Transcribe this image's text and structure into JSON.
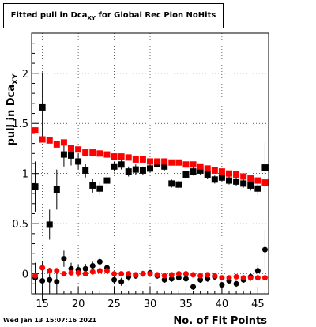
{
  "chart_data": {
    "type": "scatter",
    "title": "Fitted pull in Dca_XY for Global Rec Pion NoHits",
    "title_main": "Fitted pull in Dca",
    "title_sub": "XY",
    "title_rest": " for Global Rec Pion NoHits",
    "xlabel": "No. of Fit Points",
    "ylabel_main": "pull in Dca",
    "ylabel_sub": "XY",
    "xlim": [
      13.5,
      46.5
    ],
    "ylim": [
      -0.2,
      2.4
    ],
    "x_ticks": [
      15,
      20,
      25,
      30,
      35,
      40,
      45
    ],
    "y_ticks": [
      0,
      0.5,
      1,
      1.5,
      2
    ],
    "y_tick_labels": [
      "0",
      "0.5",
      "1",
      "1.5",
      "2"
    ],
    "x_tick_labels": [
      "15",
      "20",
      "25",
      "30",
      "35",
      "40",
      "45"
    ],
    "series": [
      {
        "marker": "square",
        "color": "#000000",
        "x": [
          14,
          15,
          16,
          17,
          18,
          19,
          20,
          21,
          22,
          23,
          24,
          25,
          26,
          27,
          28,
          29,
          30,
          31,
          32,
          33,
          34,
          35,
          36,
          37,
          38,
          39,
          40,
          41,
          42,
          43,
          44,
          45,
          46
        ],
        "y": [
          0.87,
          1.66,
          0.49,
          0.84,
          1.19,
          1.18,
          1.12,
          1.03,
          0.88,
          0.85,
          0.93,
          1.07,
          1.09,
          1.02,
          1.04,
          1.03,
          1.05,
          1.1,
          1.07,
          0.9,
          0.89,
          0.99,
          1.02,
          1.03,
          0.99,
          0.94,
          0.96,
          0.93,
          0.92,
          0.9,
          0.88,
          0.85,
          1.06
        ],
        "err": [
          0.25,
          0.35,
          0.15,
          0.2,
          0.12,
          0.1,
          0.08,
          0.07,
          0.07,
          0.06,
          0.07,
          0.05,
          0.05,
          0.05,
          0.05,
          0.04,
          0.04,
          0.04,
          0.04,
          0.04,
          0.04,
          0.04,
          0.04,
          0.04,
          0.04,
          0.04,
          0.04,
          0.04,
          0.04,
          0.04,
          0.05,
          0.06,
          0.25
        ]
      },
      {
        "marker": "square",
        "color": "#ff0000",
        "x": [
          14,
          15,
          16,
          17,
          18,
          19,
          20,
          21,
          22,
          23,
          24,
          25,
          26,
          27,
          28,
          29,
          30,
          31,
          32,
          33,
          34,
          35,
          36,
          37,
          38,
          39,
          40,
          41,
          42,
          43,
          44,
          45,
          46
        ],
        "y": [
          1.43,
          1.34,
          1.33,
          1.29,
          1.31,
          1.25,
          1.24,
          1.21,
          1.21,
          1.2,
          1.19,
          1.17,
          1.17,
          1.16,
          1.14,
          1.14,
          1.12,
          1.12,
          1.12,
          1.11,
          1.11,
          1.09,
          1.09,
          1.07,
          1.05,
          1.03,
          1.02,
          1.0,
          0.99,
          0.97,
          0.95,
          0.93,
          0.91
        ],
        "err": [
          0.03,
          0.02,
          0.02,
          0.02,
          0.02,
          0.02,
          0.02,
          0.02,
          0.01,
          0.01,
          0.01,
          0.01,
          0.01,
          0.01,
          0.01,
          0.01,
          0.01,
          0.01,
          0.01,
          0.01,
          0.01,
          0.01,
          0.01,
          0.01,
          0.01,
          0.01,
          0.01,
          0.01,
          0.01,
          0.01,
          0.01,
          0.02,
          0.02
        ]
      },
      {
        "marker": "circle",
        "color": "#000000",
        "x": [
          14,
          15,
          16,
          17,
          18,
          19,
          20,
          21,
          22,
          23,
          24,
          25,
          26,
          27,
          28,
          29,
          30,
          31,
          32,
          33,
          34,
          35,
          36,
          37,
          38,
          39,
          40,
          41,
          42,
          43,
          44,
          45,
          46
        ],
        "y": [
          -0.04,
          -0.07,
          -0.06,
          -0.08,
          0.15,
          0.05,
          0.04,
          0.05,
          0.08,
          0.12,
          0.06,
          -0.06,
          -0.08,
          -0.03,
          -0.02,
          0.0,
          0.01,
          -0.02,
          -0.06,
          -0.05,
          -0.04,
          -0.05,
          -0.13,
          -0.06,
          -0.05,
          -0.03,
          -0.11,
          -0.07,
          -0.1,
          -0.06,
          -0.03,
          0.03,
          0.24
        ],
        "err": [
          0.15,
          0.2,
          0.12,
          0.1,
          0.08,
          0.06,
          0.05,
          0.05,
          0.04,
          0.04,
          0.04,
          0.04,
          0.04,
          0.04,
          0.03,
          0.03,
          0.03,
          0.03,
          0.03,
          0.03,
          0.03,
          0.03,
          0.03,
          0.03,
          0.03,
          0.03,
          0.03,
          0.03,
          0.03,
          0.03,
          0.04,
          0.06,
          0.2
        ]
      },
      {
        "marker": "circle",
        "color": "#ff0000",
        "x": [
          14,
          15,
          16,
          17,
          18,
          19,
          20,
          21,
          22,
          23,
          24,
          25,
          26,
          27,
          28,
          29,
          30,
          31,
          32,
          33,
          34,
          35,
          36,
          37,
          38,
          39,
          40,
          41,
          42,
          43,
          44,
          45,
          46
        ],
        "y": [
          -0.02,
          0.06,
          0.03,
          0.03,
          0.0,
          0.01,
          0.01,
          0.0,
          0.02,
          0.03,
          0.03,
          0.0,
          0.0,
          0.0,
          -0.01,
          0.0,
          0.0,
          -0.01,
          -0.02,
          -0.01,
          0.0,
          0.0,
          -0.01,
          -0.02,
          -0.01,
          -0.02,
          -0.04,
          -0.04,
          -0.03,
          -0.04,
          -0.04,
          -0.04,
          -0.04
        ],
        "err": [
          0.02,
          0.02,
          0.02,
          0.02,
          0.01,
          0.01,
          0.01,
          0.01,
          0.01,
          0.01,
          0.01,
          0.01,
          0.01,
          0.01,
          0.01,
          0.01,
          0.01,
          0.01,
          0.01,
          0.01,
          0.01,
          0.01,
          0.01,
          0.01,
          0.01,
          0.01,
          0.01,
          0.01,
          0.01,
          0.01,
          0.01,
          0.01,
          0.01
        ]
      }
    ]
  },
  "footer": {
    "date": "Wed Jan 13 15:07:16 2021"
  }
}
